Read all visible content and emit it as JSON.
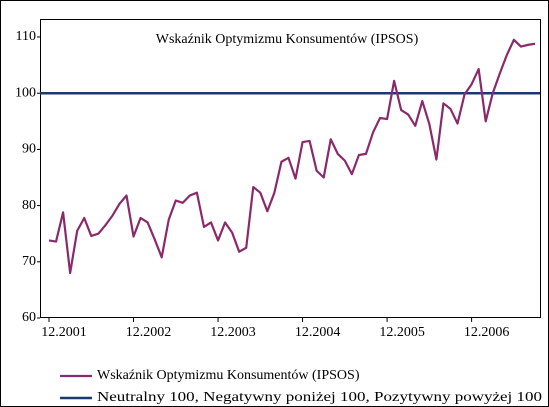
{
  "chart_data": {
    "type": "line",
    "title": "Wskaźnik Optymizmu Konsumentów (IPSOS)",
    "categories": [
      "12.2001",
      null,
      null,
      null,
      null,
      null,
      null,
      null,
      null,
      null,
      null,
      null,
      "12.2002",
      null,
      null,
      null,
      null,
      null,
      null,
      null,
      null,
      null,
      null,
      null,
      "12.2003",
      null,
      null,
      null,
      null,
      null,
      null,
      null,
      null,
      null,
      null,
      null,
      "12.2004",
      null,
      null,
      null,
      null,
      null,
      null,
      null,
      null,
      null,
      null,
      null,
      "12.2005",
      null,
      null,
      null,
      null,
      null,
      null,
      null,
      null,
      null,
      null,
      null,
      "12.2006",
      null,
      null,
      null,
      null,
      null,
      null,
      null,
      null,
      null
    ],
    "series": [
      {
        "name": "Wskaźnik Optymizmu Konsumentów (IPSOS)",
        "color": "#8b2a6b",
        "values": [
          73.8,
          73.6,
          78.8,
          68,
          75.5,
          77.8,
          74.6,
          75,
          76.5,
          78.2,
          80.3,
          81.8,
          74.5,
          77.8,
          77,
          74,
          70.8,
          77.5,
          80.9,
          80.5,
          81.8,
          82.3,
          76.2,
          77,
          73.8,
          77,
          75.2,
          71.8,
          72.5,
          83.3,
          82.3,
          79,
          82.3,
          87.8,
          88.5,
          84.8,
          91.3,
          91.5,
          86.2,
          85,
          91.8,
          89.2,
          88,
          85.6,
          89,
          89.2,
          93,
          95.6,
          95.4,
          102.2,
          97,
          96.2,
          94.2,
          98.6,
          94.5,
          88.2,
          98.2,
          97.2,
          94.6,
          99.8,
          101.6,
          104.3,
          95,
          100,
          103.5,
          106.8,
          109.5,
          108.3,
          108.6,
          108.8
        ]
      }
    ],
    "reference_line": {
      "name": "Neutralny 100, Negatywny poniżej 100, Pozytywny powyżej 100",
      "value": 100,
      "color": "#1a3a6b"
    },
    "ylim": [
      60,
      110
    ],
    "yticks": [
      60,
      70,
      80,
      90,
      100,
      110
    ]
  }
}
